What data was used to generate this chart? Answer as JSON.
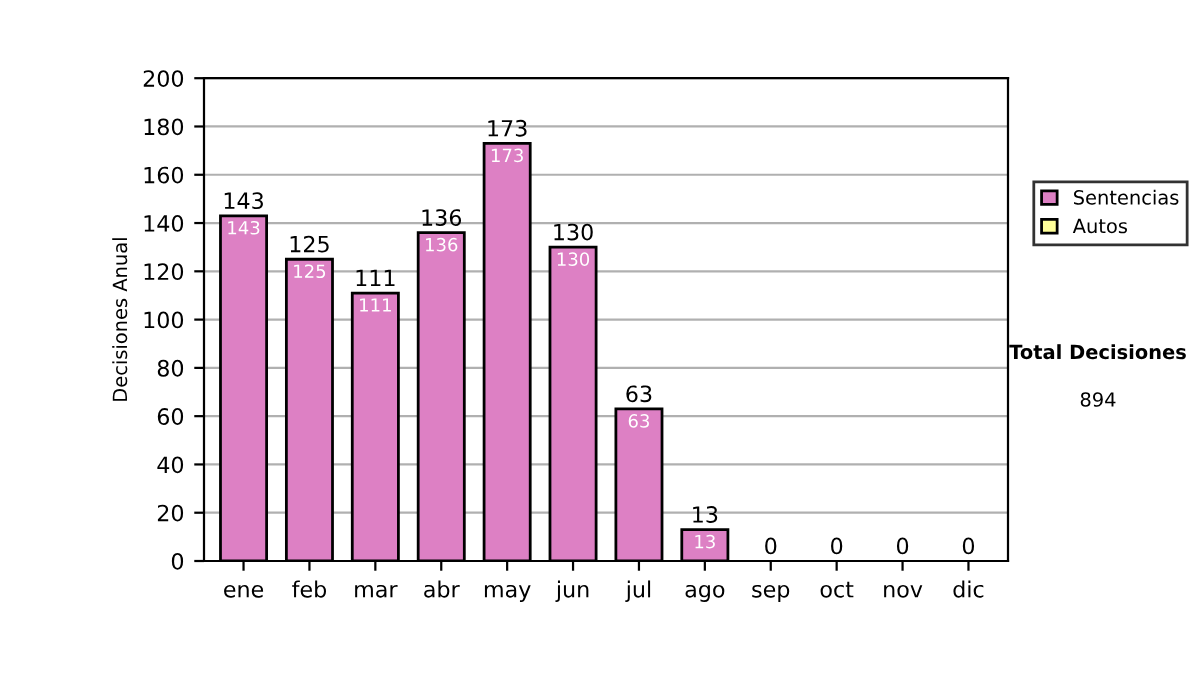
{
  "chart_data": {
    "type": "bar",
    "stacked": true,
    "ylabel": "Decisiones Anual",
    "categories": [
      "ene",
      "feb",
      "mar",
      "abr",
      "may",
      "jun",
      "jul",
      "ago",
      "sep",
      "oct",
      "nov",
      "dic"
    ],
    "series": [
      {
        "name": "Sentencias",
        "color": "#dd80c4",
        "values": [
          143,
          125,
          111,
          136,
          173,
          130,
          63,
          13,
          0,
          0,
          0,
          0
        ],
        "value_labels": [
          "143",
          "125",
          "111",
          "136",
          "173",
          "130",
          "63",
          "13",
          null,
          null,
          null,
          null
        ]
      },
      {
        "name": "Autos",
        "color": "#ffff99",
        "values": [
          0,
          0,
          0,
          0,
          0,
          0,
          0,
          0,
          0,
          0,
          0,
          0
        ]
      }
    ],
    "totals": [
      "143",
      "125",
      "111",
      "136",
      "173",
      "130",
      "63",
      "13",
      "0",
      "0",
      "0",
      "0"
    ],
    "ylim": [
      0,
      200
    ],
    "yticks": [
      0,
      20,
      40,
      60,
      80,
      100,
      120,
      140,
      160,
      180,
      200
    ],
    "grid": "y",
    "legend": "right",
    "annotations": [
      "Total Decisiones",
      "894"
    ]
  }
}
